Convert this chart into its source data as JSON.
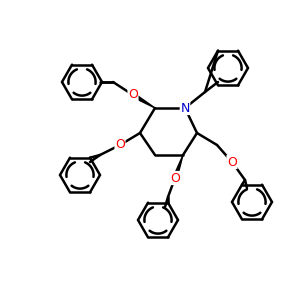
{
  "background_color": "#ffffff",
  "atom_color_O": "#ff0000",
  "atom_color_N": "#0000cc",
  "bond_color": "#000000",
  "bond_width": 1.8,
  "figsize": [
    3.0,
    3.0
  ],
  "dpi": 100,
  "xlim": [
    0,
    300
  ],
  "ylim": [
    0,
    300
  ]
}
